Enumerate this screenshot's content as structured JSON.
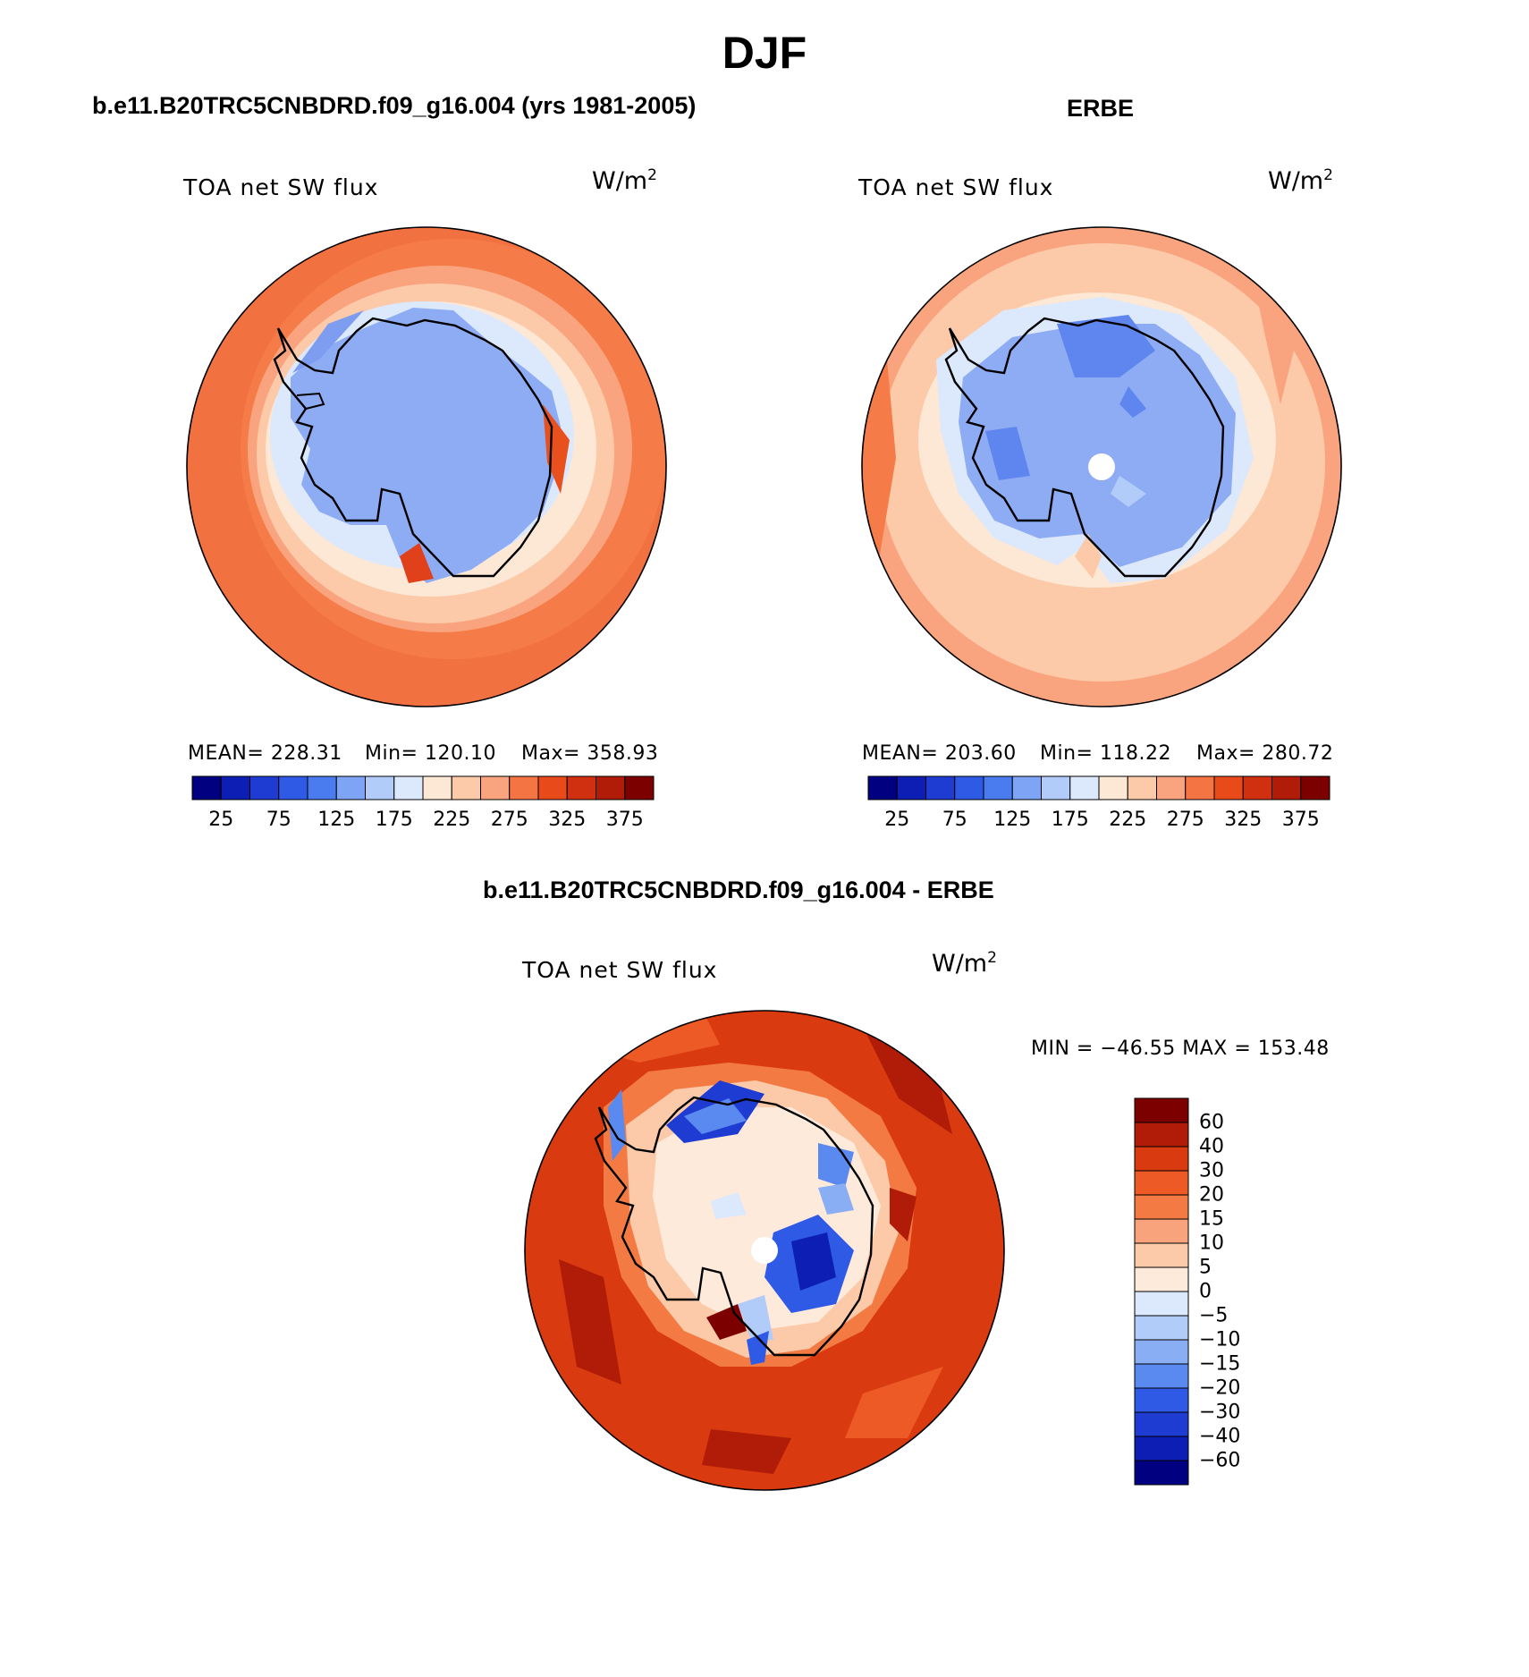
{
  "figure": {
    "title": "DJF"
  },
  "panels": [
    {
      "title": "b.e11.B20TRC5CNBDRD.f09_g16.004 (yrs 1981-2005)",
      "left_label": "TOA net SW flux",
      "units": "W/m",
      "units_sup": "2",
      "stats": {
        "mean": "MEAN= 228.31",
        "min": "Min= 120.10",
        "max": "Max= 358.93"
      },
      "colorbar_ticks": [
        "25",
        "75",
        "125",
        "175",
        "225",
        "275",
        "325",
        "375"
      ]
    },
    {
      "title": "ERBE",
      "left_label": "TOA net SW flux",
      "units": "W/m",
      "units_sup": "2",
      "stats": {
        "mean": "MEAN= 203.60",
        "min": "Min= 118.22",
        "max": "Max= 280.72"
      },
      "colorbar_ticks": [
        "25",
        "75",
        "125",
        "175",
        "225",
        "275",
        "325",
        "375"
      ]
    },
    {
      "title": "b.e11.B20TRC5CNBDRD.f09_g16.004 - ERBE",
      "left_label": "TOA net SW flux",
      "units": "W/m",
      "units_sup": "2",
      "stats": {
        "minmax": "MIN = −46.55 MAX = 153.48"
      },
      "colorbar_ticks": [
        "60",
        "40",
        "30",
        "20",
        "15",
        "10",
        "5",
        "0",
        "−5",
        "−10",
        "−15",
        "−20",
        "−30",
        "−40",
        "−60"
      ]
    }
  ],
  "colors": {
    "abs_scale": [
      "#000080",
      "#0c1eb4",
      "#1e3cd2",
      "#2e5ae6",
      "#4a7cf0",
      "#7ea4f6",
      "#b2ccfa",
      "#dce8fc",
      "#fde7d5",
      "#fccaa9",
      "#f9a47e",
      "#f57444",
      "#e84a1a",
      "#d03010",
      "#b01c08",
      "#7d0000"
    ],
    "diff_scale": [
      "#7d0000",
      "#b01c08",
      "#d93a10",
      "#ee5a26",
      "#f47a44",
      "#f9a37c",
      "#fccaa8",
      "#fdeadb",
      "#dce8fc",
      "#b2ccfa",
      "#8aaef4",
      "#5a8af0",
      "#2e5ae6",
      "#1e3cd2",
      "#0c1eb4",
      "#000080"
    ]
  }
}
